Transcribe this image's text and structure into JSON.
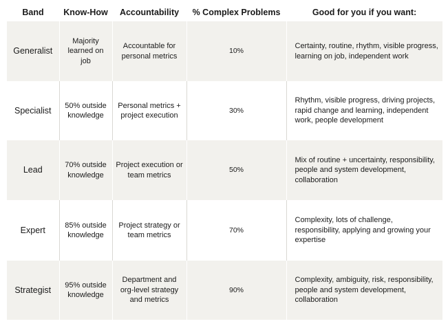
{
  "headers": {
    "band": "Band",
    "know_how": "Know-How",
    "accountability": "Accountability",
    "complex": "% Complex Problems",
    "good_for": "Good for you if you want:"
  },
  "rows": [
    {
      "band": "Generalist",
      "know_how": "Majority learned on job",
      "accountability": "Accountable for personal metrics",
      "complex": "10%",
      "good_for": "Certainty, routine, rhythm, visible progress, learning on job, independent work"
    },
    {
      "band": "Specialist",
      "know_how": "50% outside knowledge",
      "accountability": "Personal metrics + project execution",
      "complex": "30%",
      "good_for": "Rhythm, visible progress, driving projects, rapid change and learning, independent work, people development"
    },
    {
      "band": "Lead",
      "know_how": "70% outside knowledge",
      "accountability": "Project execution or team metrics",
      "complex": "50%",
      "good_for": "Mix of routine + uncertainty, responsibility, people and system development, collaboration"
    },
    {
      "band": "Expert",
      "know_how": "85% outside knowledge",
      "accountability": "Project strategy or team metrics",
      "complex": "70%",
      "good_for": "Complexity, lots of challenge, responsibility, applying and growing your expertise"
    },
    {
      "band": "Strategist",
      "know_how": "95% outside knowledge",
      "accountability": "Department and org-level strategy and metrics",
      "complex": "90%",
      "good_for": "Complexity, ambiguity, risk, responsibility, people and system development, collaboration"
    }
  ],
  "colors": {
    "shaded_row": "#f2f1ed",
    "plain_row": "#ffffff",
    "divider": "#d9d8d3",
    "text": "#1a1a1a"
  }
}
